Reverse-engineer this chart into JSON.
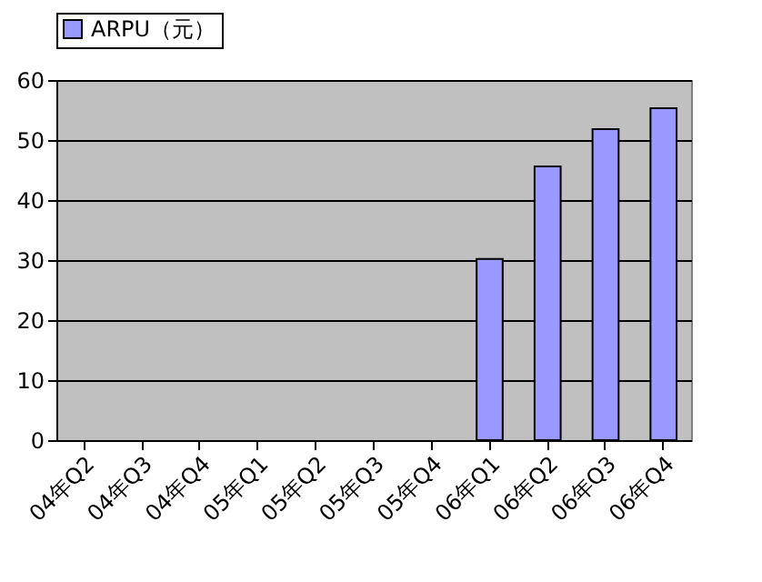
{
  "chart_data": {
    "type": "bar",
    "categories": [
      "04年Q2",
      "04年Q3",
      "04年Q4",
      "05年Q1",
      "05年Q2",
      "05年Q3",
      "05年Q4",
      "06年Q1",
      "06年Q2",
      "06年Q3",
      "06年Q4"
    ],
    "series": [
      {
        "name": "ARPU（元）",
        "color": "#9999ff",
        "values": [
          null,
          null,
          null,
          null,
          null,
          null,
          null,
          30.2,
          45.6,
          51.8,
          55.3
        ]
      }
    ],
    "ylim": [
      0,
      60
    ],
    "yticks": [
      0,
      10,
      20,
      30,
      40,
      50,
      60
    ],
    "grid": "y",
    "legend": "top"
  }
}
